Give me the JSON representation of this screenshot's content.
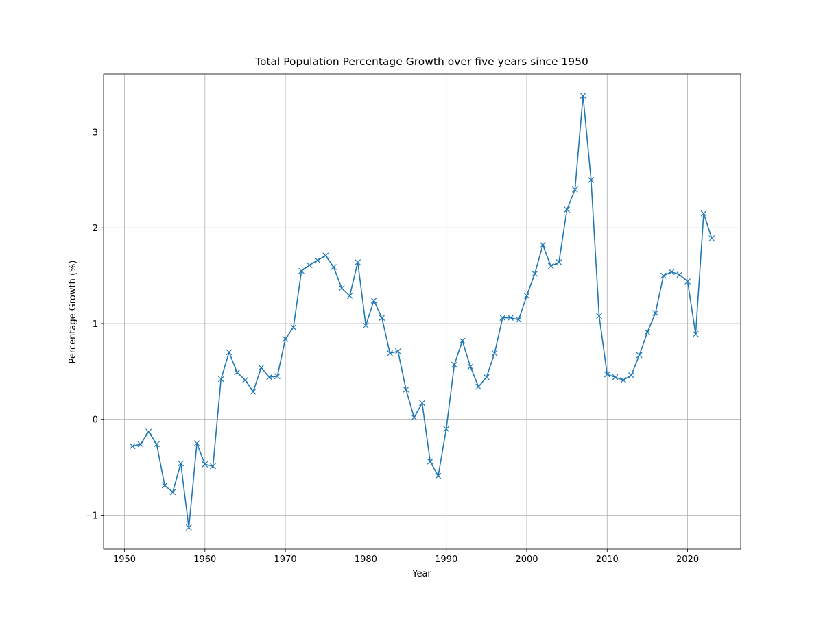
{
  "chart_data": {
    "type": "line",
    "title": "Total Population Percentage Growth over five years  since 1950",
    "x_label": "Year",
    "y_label": "Percentage Growth (%)",
    "x": [
      1951,
      1952,
      1953,
      1954,
      1955,
      1956,
      1957,
      1958,
      1959,
      1960,
      1961,
      1962,
      1963,
      1964,
      1965,
      1966,
      1967,
      1968,
      1969,
      1970,
      1971,
      1972,
      1973,
      1974,
      1975,
      1976,
      1977,
      1978,
      1979,
      1980,
      1981,
      1982,
      1983,
      1984,
      1985,
      1986,
      1987,
      1988,
      1989,
      1990,
      1991,
      1992,
      1993,
      1994,
      1995,
      1996,
      1997,
      1998,
      1999,
      2000,
      2001,
      2002,
      2003,
      2004,
      2005,
      2006,
      2007,
      2008,
      2009,
      2010,
      2011,
      2012,
      2013,
      2014,
      2015,
      2016,
      2017,
      2018,
      2019,
      2020,
      2021,
      2022,
      2023
    ],
    "values": [
      -0.28,
      -0.26,
      -0.13,
      -0.26,
      -0.69,
      -0.76,
      -0.46,
      -1.13,
      -0.25,
      -0.47,
      -0.49,
      0.42,
      0.7,
      0.49,
      0.41,
      0.29,
      0.54,
      0.44,
      0.45,
      0.84,
      0.96,
      1.55,
      1.61,
      1.66,
      1.71,
      1.59,
      1.37,
      1.29,
      1.64,
      0.98,
      1.24,
      1.06,
      0.69,
      0.71,
      0.31,
      0.02,
      0.17,
      -0.44,
      -0.59,
      -0.1,
      0.57,
      0.82,
      0.55,
      0.34,
      0.44,
      0.69,
      1.06,
      1.06,
      1.04,
      1.29,
      1.52,
      1.82,
      1.6,
      1.64,
      2.19,
      2.4,
      3.38,
      2.5,
      1.08,
      0.47,
      0.44,
      0.41,
      0.46,
      0.67,
      0.91,
      1.11,
      1.5,
      1.54,
      1.51,
      1.44,
      0.89,
      2.15,
      1.89
    ],
    "color": "#1f77b4",
    "marker": "x",
    "xlim": [
      1947.4,
      2026.6
    ],
    "xticks": [
      1950,
      1960,
      1970,
      1980,
      1990,
      2000,
      2010,
      2020
    ],
    "ylim": [
      -1.355,
      3.605
    ],
    "yticks": [
      {
        "value": -1,
        "label": "−1"
      },
      0,
      1,
      2,
      3
    ],
    "grid": true
  }
}
